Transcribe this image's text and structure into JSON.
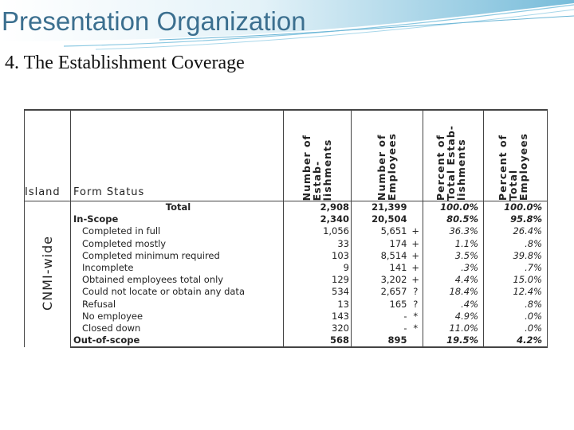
{
  "slide": {
    "title": "Presentation Organization",
    "subtitle": "4. The Establishment Coverage"
  },
  "table": {
    "headers": {
      "island": "Island",
      "form_status": "Form Status",
      "num_establishments": "Number of\nEstab-\nlishments",
      "num_employees": "Number of\nEmployees",
      "pct_establishments": "Percent of\nTotal Estab-\nlishments",
      "pct_employees": "Percent of\nTotal\nEmployees"
    },
    "island_label": "CNMI-wide",
    "rows": [
      {
        "status": "Total",
        "est": "2,908",
        "emp": "21,399",
        "flag": "",
        "pct_est": "100.0%",
        "pct_emp": "100.0%"
      },
      {
        "status": "In-Scope",
        "est": "2,340",
        "emp": "20,504",
        "flag": "",
        "pct_est": "80.5%",
        "pct_emp": "95.8%"
      },
      {
        "status": "Completed in full",
        "est": "1,056",
        "emp": "5,651",
        "flag": "+",
        "pct_est": "36.3%",
        "pct_emp": "26.4%"
      },
      {
        "status": "Completed mostly",
        "est": "33",
        "emp": "174",
        "flag": "+",
        "pct_est": "1.1%",
        "pct_emp": ".8%"
      },
      {
        "status": "Completed minimum required",
        "est": "103",
        "emp": "8,514",
        "flag": "+",
        "pct_est": "3.5%",
        "pct_emp": "39.8%"
      },
      {
        "status": "Incomplete",
        "est": "9",
        "emp": "141",
        "flag": "+",
        "pct_est": ".3%",
        "pct_emp": ".7%"
      },
      {
        "status": "Obtained employees total only",
        "est": "129",
        "emp": "3,202",
        "flag": "+",
        "pct_est": "4.4%",
        "pct_emp": "15.0%"
      },
      {
        "status": "Could not locate or obtain any data",
        "est": "534",
        "emp": "2,657",
        "flag": "?",
        "pct_est": "18.4%",
        "pct_emp": "12.4%"
      },
      {
        "status": "Refusal",
        "est": "13",
        "emp": "165",
        "flag": "?",
        "pct_est": ".4%",
        "pct_emp": ".8%"
      },
      {
        "status": "No employee",
        "est": "143",
        "emp": "-",
        "flag": "*",
        "pct_est": "4.9%",
        "pct_emp": ".0%"
      },
      {
        "status": "Closed down",
        "est": "320",
        "emp": "-",
        "flag": "*",
        "pct_est": "11.0%",
        "pct_emp": ".0%"
      },
      {
        "status": "Out-of-scope",
        "est": "568",
        "emp": "895",
        "flag": "",
        "pct_est": "19.5%",
        "pct_emp": "4.2%"
      }
    ]
  }
}
